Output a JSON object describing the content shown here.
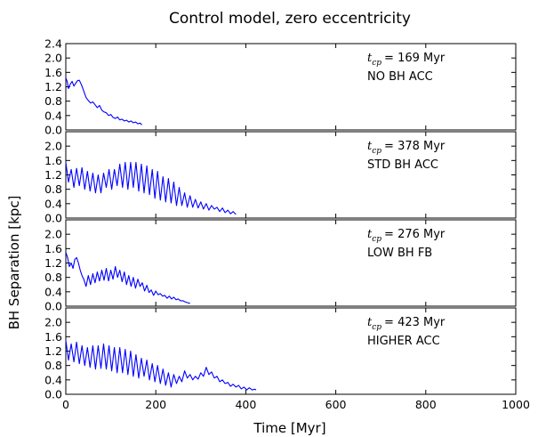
{
  "chart_data": {
    "type": "line",
    "title": "Control model, zero eccentricity",
    "xlabel": "Time [Myr]",
    "ylabel": "BH Separation [kpc]",
    "xlim": [
      0,
      1000
    ],
    "ylim": [
      0.0,
      2.4
    ],
    "x_ticks": [
      "0",
      "200",
      "400",
      "600",
      "800",
      "1000"
    ],
    "y_ticks": [
      "0.0",
      "0.4",
      "0.8",
      "1.2",
      "1.6",
      "2.0",
      "2.4"
    ],
    "grid": false,
    "line_color": "#0000ff",
    "panels": [
      {
        "label": "NO BH ACC",
        "tcp_symbol": "t",
        "tcp_subscript": "cp",
        "tcp_value": "= 169 Myr",
        "series": {
          "x": [
            0,
            3,
            6,
            10,
            14,
            18,
            22,
            26,
            30,
            35,
            40,
            45,
            50,
            55,
            60,
            65,
            70,
            75,
            80,
            85,
            90,
            95,
            100,
            105,
            110,
            115,
            120,
            125,
            130,
            135,
            140,
            145,
            150,
            155,
            160,
            165,
            169
          ],
          "y": [
            1.45,
            1.35,
            1.15,
            1.28,
            1.35,
            1.22,
            1.3,
            1.37,
            1.38,
            1.25,
            1.08,
            0.9,
            0.82,
            0.75,
            0.78,
            0.7,
            0.62,
            0.68,
            0.55,
            0.5,
            0.48,
            0.4,
            0.43,
            0.35,
            0.32,
            0.36,
            0.28,
            0.3,
            0.25,
            0.27,
            0.22,
            0.25,
            0.2,
            0.22,
            0.17,
            0.19,
            0.14
          ]
        }
      },
      {
        "label": "STD BH ACC",
        "tcp_symbol": "t",
        "tcp_subscript": "cp",
        "tcp_value": "= 378 Myr",
        "series": {
          "x": [
            0,
            6,
            12,
            18,
            24,
            30,
            36,
            42,
            48,
            54,
            60,
            66,
            72,
            78,
            84,
            90,
            96,
            102,
            108,
            114,
            120,
            126,
            132,
            138,
            144,
            150,
            156,
            162,
            168,
            174,
            180,
            186,
            192,
            198,
            204,
            210,
            216,
            222,
            228,
            234,
            240,
            246,
            252,
            258,
            264,
            270,
            276,
            282,
            288,
            294,
            300,
            306,
            312,
            318,
            324,
            330,
            336,
            342,
            348,
            354,
            360,
            366,
            372,
            378
          ],
          "y": [
            1.55,
            1.0,
            1.35,
            0.85,
            1.38,
            0.9,
            1.4,
            0.8,
            1.3,
            0.75,
            1.25,
            0.7,
            1.2,
            0.7,
            1.25,
            0.85,
            1.35,
            0.8,
            1.35,
            0.9,
            1.5,
            0.85,
            1.55,
            0.8,
            1.55,
            0.85,
            1.55,
            0.75,
            1.5,
            0.7,
            1.45,
            0.65,
            1.35,
            0.55,
            1.3,
            0.5,
            1.15,
            0.45,
            1.1,
            0.42,
            1.0,
            0.35,
            0.85,
            0.35,
            0.7,
            0.3,
            0.62,
            0.3,
            0.52,
            0.28,
            0.45,
            0.25,
            0.4,
            0.22,
            0.35,
            0.25,
            0.3,
            0.18,
            0.28,
            0.15,
            0.22,
            0.12,
            0.18,
            0.1
          ]
        }
      },
      {
        "label": "LOW BH FB",
        "tcp_symbol": "t",
        "tcp_subscript": "cp",
        "tcp_value": "= 276 Myr",
        "series": {
          "x": [
            0,
            4,
            8,
            12,
            16,
            20,
            24,
            28,
            32,
            36,
            40,
            45,
            50,
            55,
            60,
            65,
            70,
            75,
            80,
            85,
            90,
            95,
            100,
            105,
            110,
            115,
            120,
            125,
            130,
            135,
            140,
            145,
            150,
            155,
            160,
            165,
            170,
            175,
            180,
            185,
            190,
            195,
            200,
            205,
            210,
            215,
            220,
            225,
            230,
            235,
            240,
            245,
            250,
            255,
            260,
            265,
            270,
            276
          ],
          "y": [
            1.5,
            1.35,
            1.1,
            1.2,
            1.05,
            1.3,
            1.35,
            1.2,
            1.0,
            0.85,
            0.75,
            0.55,
            0.85,
            0.6,
            0.9,
            0.65,
            0.95,
            0.7,
            1.0,
            0.72,
            1.05,
            0.7,
            1.0,
            0.75,
            1.1,
            0.8,
            1.0,
            0.68,
            0.95,
            0.6,
            0.85,
            0.55,
            0.8,
            0.5,
            0.75,
            0.55,
            0.65,
            0.42,
            0.58,
            0.38,
            0.45,
            0.3,
            0.42,
            0.32,
            0.35,
            0.28,
            0.3,
            0.22,
            0.28,
            0.2,
            0.25,
            0.18,
            0.2,
            0.15,
            0.15,
            0.12,
            0.1,
            0.08
          ]
        }
      },
      {
        "label": "HIGHER ACC",
        "tcp_symbol": "t",
        "tcp_subscript": "cp",
        "tcp_value": "= 423 Myr",
        "series": {
          "x": [
            0,
            6,
            12,
            18,
            24,
            30,
            36,
            42,
            48,
            54,
            60,
            66,
            72,
            78,
            84,
            90,
            96,
            102,
            108,
            114,
            120,
            126,
            132,
            138,
            144,
            150,
            156,
            162,
            168,
            174,
            180,
            186,
            192,
            198,
            204,
            210,
            216,
            222,
            228,
            234,
            240,
            246,
            252,
            258,
            264,
            270,
            276,
            282,
            288,
            294,
            300,
            306,
            312,
            318,
            324,
            330,
            336,
            342,
            348,
            354,
            360,
            366,
            372,
            378,
            384,
            390,
            396,
            402,
            408,
            414,
            420,
            423
          ],
          "y": [
            1.5,
            0.95,
            1.4,
            0.9,
            1.45,
            0.85,
            1.35,
            0.8,
            1.3,
            0.75,
            1.35,
            0.7,
            1.35,
            0.72,
            1.4,
            0.7,
            1.35,
            0.65,
            1.3,
            0.6,
            1.3,
            0.6,
            1.25,
            0.55,
            1.2,
            0.5,
            1.1,
            0.45,
            1.0,
            0.5,
            0.95,
            0.4,
            0.85,
            0.35,
            0.8,
            0.3,
            0.7,
            0.25,
            0.6,
            0.2,
            0.55,
            0.3,
            0.5,
            0.35,
            0.65,
            0.45,
            0.55,
            0.4,
            0.5,
            0.42,
            0.6,
            0.5,
            0.75,
            0.55,
            0.62,
            0.45,
            0.5,
            0.35,
            0.4,
            0.3,
            0.33,
            0.22,
            0.28,
            0.2,
            0.25,
            0.15,
            0.2,
            0.12,
            0.18,
            0.12,
            0.14,
            0.12
          ]
        }
      }
    ]
  }
}
